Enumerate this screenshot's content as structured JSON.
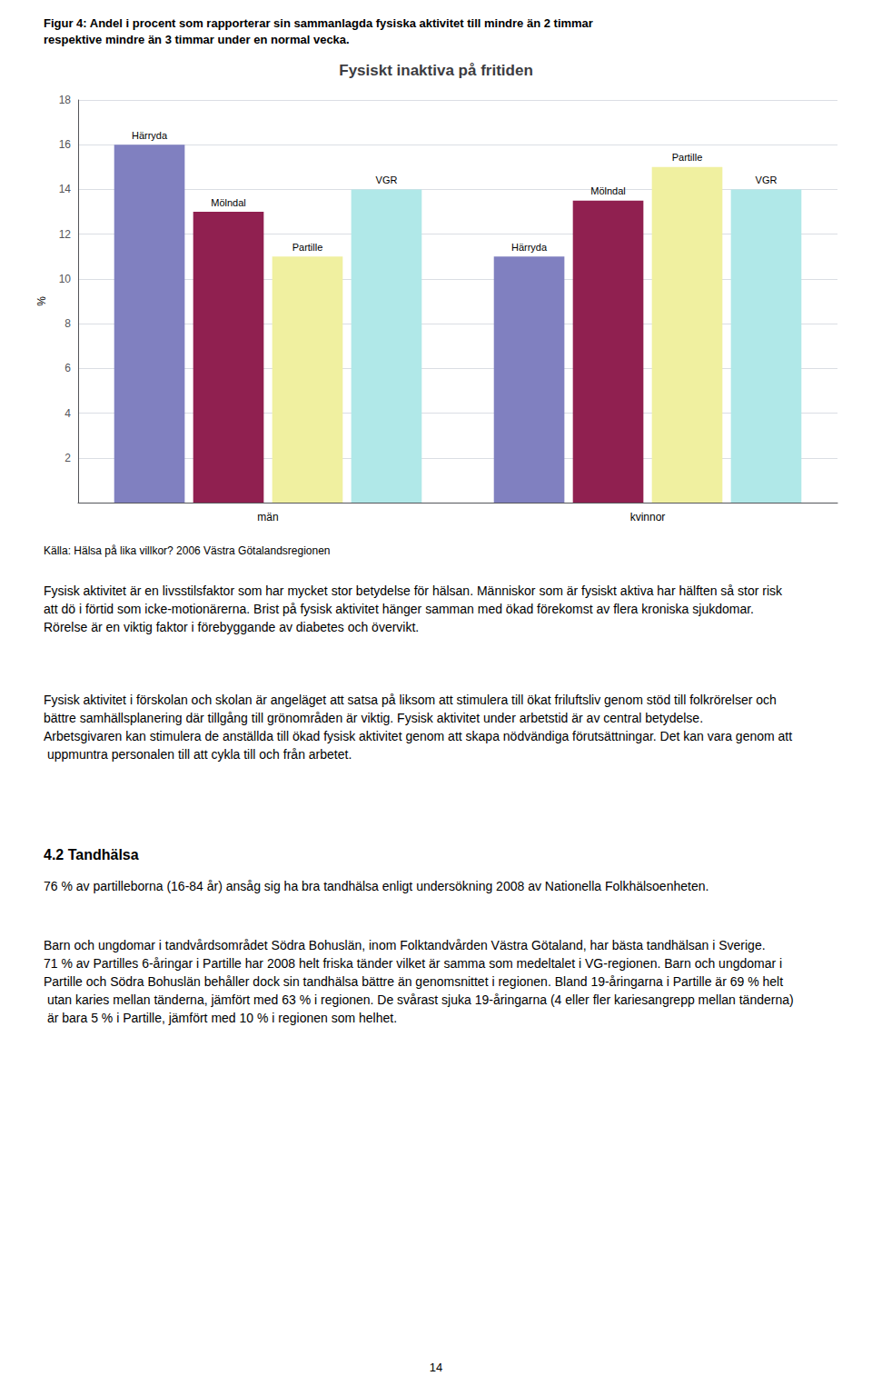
{
  "chart_data": {
    "type": "bar",
    "title": "Fysiskt inaktiva på fritiden",
    "categories": [
      "män",
      "kvinnor"
    ],
    "series": [
      {
        "name": "Härryda",
        "color": "#8080c0",
        "values": [
          16.0,
          11.0
        ]
      },
      {
        "name": "Mölndal",
        "color": "#902050",
        "values": [
          13.0,
          13.5
        ]
      },
      {
        "name": "Partille",
        "color": "#f0f0a0",
        "values": [
          11.0,
          15.0
        ]
      },
      {
        "name": "VGR",
        "color": "#b0e8e8",
        "values": [
          14.0,
          14.0
        ]
      }
    ],
    "ylabel": "%",
    "ylim": [
      0,
      18
    ],
    "yticks": [
      2,
      4,
      6,
      8,
      10,
      12,
      14,
      16,
      18
    ],
    "grid": true,
    "annotations": [
      "Figur 4: Andel i procent som rapporterar sin sammanlagda fysiska aktivitet till mindre än 2 timmar\nrespektive mindre än 3 timmar under en normal vecka.",
      "Källa: Hälsa på lika villkor? 2006 Västra Götalandsregionen",
      "Fysisk aktivitet är en livsstilsfaktor som har mycket stor betydelse för hälsan. Människor som är fysiskt aktiva har hälften så stor risk att dö i förtid som icke-motionärerna. Brist på fysisk aktivitet hänger samman med ökad förekomst av flera kroniska sjukdomar. Rörelse är en viktig faktor i förebyggande av diabetes och övervikt.",
      "Fysisk aktivitet i förskolan och skolan är angeläget att satsa på liksom att stimulera till ökat friluftsliv genom stöd till folkrörelser och bättre samhällsplanering där tillgång till grönområden är viktig. Fysisk aktivitet under arbetstid är av central betydelse. Arbetsgivaren kan stimulera de anställda till ökad fysisk aktivitet genom att skapa nödvändiga förutsättningar. Det kan vara genom att uppmuntra personalen till att cykla till och från arbetet.",
      "4.2 Tandhälsa",
      "76 % av partilleborna (16-84 år) ansåg sig ha bra tandhälsa enligt undersökning 2008 av Nationella Folkhälsoenheten.",
      "Barn och ungdomar i tandvårdsområdet Södra Bohuslän, inom Folktandvården Västra Götaland, har bästa tandhälsan i Sverige. 71 % av Partilles 6-åringar i Partille har 2008 helt friska tänder vilket är samma som medeltalet i VG-regionen. Barn och ungdomar i Partille och Södra Bohuslän behåller dock sin tandhälsa bättre än genomsnittet i regionen. Bland 19-åringarna i Partille är 69 % helt utan karies mellan tänderna, jämfört med 63 % i regionen. De svårast sjuka 19-åringarna (4 eller fler kariesangrepp mellan tänderna) är bara 5 % i Partille, jämfört med 10 % i regionen som helhet.",
      "14"
    ]
  }
}
